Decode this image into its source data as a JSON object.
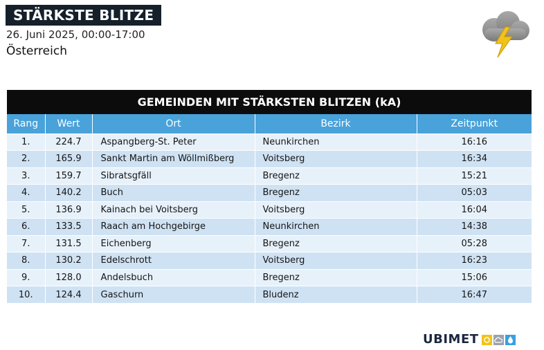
{
  "header": {
    "title": "STÄRKSTE BLITZE",
    "date_range": "26. Juni 2025, 00:00-17:00",
    "region": "Österreich"
  },
  "icons": {
    "weather": "thunderstorm-cloud-icon",
    "logo_sun": "sun-icon",
    "logo_cloud": "cloud-icon",
    "logo_drop": "raindrop-icon"
  },
  "table": {
    "caption": "GEMEINDEN MIT STÄRKSTEN BLITZEN (kA)",
    "columns": [
      "Rang",
      "Wert",
      "Ort",
      "Bezirk",
      "Zeitpunkt"
    ],
    "rows": [
      {
        "rang": "1.",
        "wert": "224.7",
        "ort": "Aspangberg-St. Peter",
        "bezirk": "Neunkirchen",
        "zeit": "16:16"
      },
      {
        "rang": "2.",
        "wert": "165.9",
        "ort": "Sankt Martin am Wöllmißberg",
        "bezirk": "Voitsberg",
        "zeit": "16:34"
      },
      {
        "rang": "3.",
        "wert": "159.7",
        "ort": "Sibratsgfäll",
        "bezirk": "Bregenz",
        "zeit": "15:21"
      },
      {
        "rang": "4.",
        "wert": "140.2",
        "ort": "Buch",
        "bezirk": "Bregenz",
        "zeit": "05:03"
      },
      {
        "rang": "5.",
        "wert": "136.9",
        "ort": "Kainach bei Voitsberg",
        "bezirk": "Voitsberg",
        "zeit": "16:04"
      },
      {
        "rang": "6.",
        "wert": "133.5",
        "ort": "Raach am Hochgebirge",
        "bezirk": "Neunkirchen",
        "zeit": "14:38"
      },
      {
        "rang": "7.",
        "wert": "131.5",
        "ort": "Eichenberg",
        "bezirk": "Bregenz",
        "zeit": "05:28"
      },
      {
        "rang": "8.",
        "wert": "130.2",
        "ort": "Edelschrott",
        "bezirk": "Voitsberg",
        "zeit": "16:23"
      },
      {
        "rang": "9.",
        "wert": "128.0",
        "ort": "Andelsbuch",
        "bezirk": "Bregenz",
        "zeit": "15:06"
      },
      {
        "rang": "10.",
        "wert": "124.4",
        "ort": "Gaschurn",
        "bezirk": "Bludenz",
        "zeit": "16:47"
      }
    ]
  },
  "footer": {
    "logo_text": "UBIMET"
  },
  "colors": {
    "title_bg": "#15202b",
    "table_header_bg": "#0c0c0c",
    "column_header_bg": "#49a2da",
    "row_light": "#e7f1fa",
    "row_dark": "#cfe2f3",
    "logo_navy": "#1c2740",
    "logo_yellow": "#f2c21b",
    "logo_grey": "#9aa3ad",
    "logo_blue": "#3a9fe0"
  }
}
